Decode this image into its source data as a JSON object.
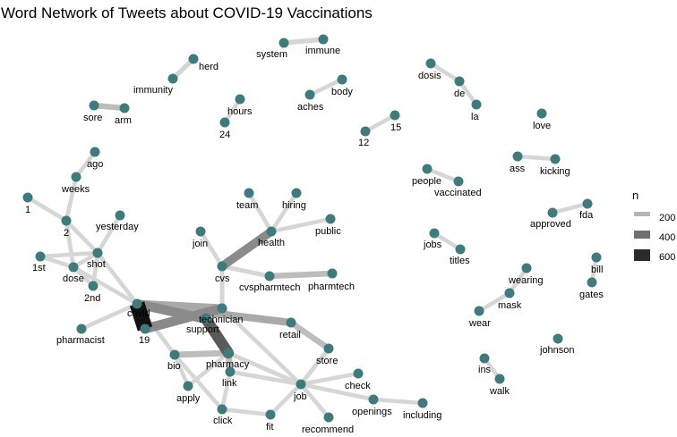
{
  "title": "Word Network of Tweets about COVID-19 Vaccinations",
  "legend": {
    "title": "n",
    "entries": [
      {
        "label": "200",
        "value": 200
      },
      {
        "label": "400",
        "value": 400
      },
      {
        "label": "600",
        "value": 600
      }
    ]
  },
  "colors": {
    "node": "#3f7a7c",
    "background": "#ffffff",
    "edge_light": "#d3d3d3",
    "edge_dark": "#000000"
  },
  "chart_data": {
    "type": "network",
    "nodes": [
      {
        "id": "herd",
        "label": "herd"
      },
      {
        "id": "immunity",
        "label": "immunity"
      },
      {
        "id": "system",
        "label": "system"
      },
      {
        "id": "immune",
        "label": "immune"
      },
      {
        "id": "dosis",
        "label": "dosis"
      },
      {
        "id": "de",
        "label": "de"
      },
      {
        "id": "la",
        "label": "la"
      },
      {
        "id": "sore",
        "label": "sore"
      },
      {
        "id": "arm",
        "label": "arm"
      },
      {
        "id": "hours",
        "label": "hours"
      },
      {
        "id": "24",
        "label": "24"
      },
      {
        "id": "aches",
        "label": "aches"
      },
      {
        "id": "body",
        "label": "body"
      },
      {
        "id": "12",
        "label": "12"
      },
      {
        "id": "15",
        "label": "15"
      },
      {
        "id": "love",
        "label": "love"
      },
      {
        "id": "ago",
        "label": "ago"
      },
      {
        "id": "weeks",
        "label": "weeks"
      },
      {
        "id": "1",
        "label": "1"
      },
      {
        "id": "2",
        "label": "2"
      },
      {
        "id": "yesterday",
        "label": "yesterday"
      },
      {
        "id": "shot",
        "label": "shot"
      },
      {
        "id": "1st",
        "label": "1st"
      },
      {
        "id": "dose",
        "label": "dose"
      },
      {
        "id": "2nd",
        "label": "2nd"
      },
      {
        "id": "ass",
        "label": "ass"
      },
      {
        "id": "kicking",
        "label": "kicking"
      },
      {
        "id": "people",
        "label": "people"
      },
      {
        "id": "vaccinated",
        "label": "vaccinated"
      },
      {
        "id": "team",
        "label": "team"
      },
      {
        "id": "hiring",
        "label": "hiring"
      },
      {
        "id": "public",
        "label": "public"
      },
      {
        "id": "join",
        "label": "join"
      },
      {
        "id": "health",
        "label": "health"
      },
      {
        "id": "cvs",
        "label": "cvs"
      },
      {
        "id": "cvspharmtech",
        "label": "cvspharmtech"
      },
      {
        "id": "pharmtech",
        "label": "pharmtech"
      },
      {
        "id": "approved",
        "label": "approved"
      },
      {
        "id": "fda",
        "label": "fda"
      },
      {
        "id": "jobs",
        "label": "jobs"
      },
      {
        "id": "titles",
        "label": "titles"
      },
      {
        "id": "bill",
        "label": "bill"
      },
      {
        "id": "gates",
        "label": "gates"
      },
      {
        "id": "wearing",
        "label": "wearing"
      },
      {
        "id": "mask",
        "label": "mask"
      },
      {
        "id": "wear",
        "label": "wear"
      },
      {
        "id": "covid",
        "label": "covid"
      },
      {
        "id": "19",
        "label": "19"
      },
      {
        "id": "pharmacist",
        "label": "pharmacist"
      },
      {
        "id": "technician",
        "label": "technician"
      },
      {
        "id": "support",
        "label": "support"
      },
      {
        "id": "retail",
        "label": "retail"
      },
      {
        "id": "store",
        "label": "store"
      },
      {
        "id": "bio",
        "label": "bio"
      },
      {
        "id": "pharmacy",
        "label": "pharmacy"
      },
      {
        "id": "link",
        "label": "link"
      },
      {
        "id": "apply",
        "label": "apply"
      },
      {
        "id": "job",
        "label": "job"
      },
      {
        "id": "check",
        "label": "check"
      },
      {
        "id": "openings",
        "label": "openings"
      },
      {
        "id": "including",
        "label": "including"
      },
      {
        "id": "click",
        "label": "click"
      },
      {
        "id": "fit",
        "label": "fit"
      },
      {
        "id": "recommend",
        "label": "recommend"
      },
      {
        "id": "johnson",
        "label": "johnson"
      },
      {
        "id": "ins",
        "label": "ins"
      },
      {
        "id": "walk",
        "label": "walk"
      }
    ],
    "edges": [
      {
        "source": "covid",
        "target": "19",
        "n": 700
      },
      {
        "source": "support",
        "target": "pharmacy",
        "n": 460
      },
      {
        "source": "covid",
        "target": "support",
        "n": 380
      },
      {
        "source": "19",
        "target": "technician",
        "n": 380
      },
      {
        "source": "cvs",
        "target": "health",
        "n": 330
      },
      {
        "source": "covid",
        "target": "technician",
        "n": 300
      },
      {
        "source": "covid",
        "target": "retail",
        "n": 260
      },
      {
        "source": "bio",
        "target": "pharmacy",
        "n": 200
      },
      {
        "source": "pharmacy",
        "target": "link",
        "n": 200
      },
      {
        "source": "retail",
        "target": "store",
        "n": 180
      },
      {
        "source": "cvspharmtech",
        "target": "pharmtech",
        "n": 180
      },
      {
        "source": "sore",
        "target": "arm",
        "n": 170
      },
      {
        "source": "system",
        "target": "immune",
        "n": 130
      },
      {
        "source": "herd",
        "target": "immunity",
        "n": 120
      },
      {
        "source": "cvs",
        "target": "technician",
        "n": 100
      },
      {
        "source": "cvs",
        "target": "cvspharmtech",
        "n": 100
      },
      {
        "source": "health",
        "target": "team",
        "n": 80
      },
      {
        "source": "health",
        "target": "hiring",
        "n": 80
      },
      {
        "source": "health",
        "target": "public",
        "n": 80
      },
      {
        "source": "cvs",
        "target": "join",
        "n": 80
      },
      {
        "source": "pharmacy",
        "target": "job",
        "n": 90
      },
      {
        "source": "link",
        "target": "job",
        "n": 90
      },
      {
        "source": "store",
        "target": "job",
        "n": 90
      },
      {
        "source": "job",
        "target": "check",
        "n": 80
      },
      {
        "source": "job",
        "target": "openings",
        "n": 80
      },
      {
        "source": "openings",
        "target": "including",
        "n": 80
      },
      {
        "source": "job",
        "target": "recommend",
        "n": 80
      },
      {
        "source": "job",
        "target": "fit",
        "n": 80
      },
      {
        "source": "click",
        "target": "fit",
        "n": 80
      },
      {
        "source": "link",
        "target": "click",
        "n": 80
      },
      {
        "source": "bio",
        "target": "apply",
        "n": 80
      },
      {
        "source": "apply",
        "target": "pharmacy",
        "n": 80
      },
      {
        "source": "bio",
        "target": "click",
        "n": 80
      },
      {
        "source": "covid",
        "target": "bio",
        "n": 80
      },
      {
        "source": "covid",
        "target": "pharmacist",
        "n": 80
      },
      {
        "source": "covid",
        "target": "dose",
        "n": 80
      },
      {
        "source": "covid",
        "target": "shot",
        "n": 80
      },
      {
        "source": "weeks",
        "target": "ago",
        "n": 80
      },
      {
        "source": "weeks",
        "target": "2",
        "n": 80
      },
      {
        "source": "1",
        "target": "2",
        "n": 80
      },
      {
        "source": "2",
        "target": "dose",
        "n": 80
      },
      {
        "source": "2",
        "target": "shot",
        "n": 80
      },
      {
        "source": "yesterday",
        "target": "shot",
        "n": 80
      },
      {
        "source": "shot",
        "target": "dose",
        "n": 80
      },
      {
        "source": "1st",
        "target": "dose",
        "n": 80
      },
      {
        "source": "1st",
        "target": "shot",
        "n": 80
      },
      {
        "source": "2nd",
        "target": "dose",
        "n": 80
      },
      {
        "source": "2nd",
        "target": "shot",
        "n": 80
      },
      {
        "source": "hours",
        "target": "24",
        "n": 80
      },
      {
        "source": "aches",
        "target": "body",
        "n": 80
      },
      {
        "source": "12",
        "target": "15",
        "n": 80
      },
      {
        "source": "dosis",
        "target": "de",
        "n": 80
      },
      {
        "source": "de",
        "target": "la",
        "n": 80
      },
      {
        "source": "ass",
        "target": "kicking",
        "n": 80
      },
      {
        "source": "people",
        "target": "vaccinated",
        "n": 80
      },
      {
        "source": "approved",
        "target": "fda",
        "n": 80
      },
      {
        "source": "jobs",
        "target": "titles",
        "n": 80
      },
      {
        "source": "bill",
        "target": "gates",
        "n": 80
      },
      {
        "source": "wearing",
        "target": "mask",
        "n": 80
      },
      {
        "source": "mask",
        "target": "wear",
        "n": 80
      },
      {
        "source": "ins",
        "target": "walk",
        "n": 80
      },
      {
        "source": "technician",
        "target": "job",
        "n": 80
      }
    ]
  }
}
